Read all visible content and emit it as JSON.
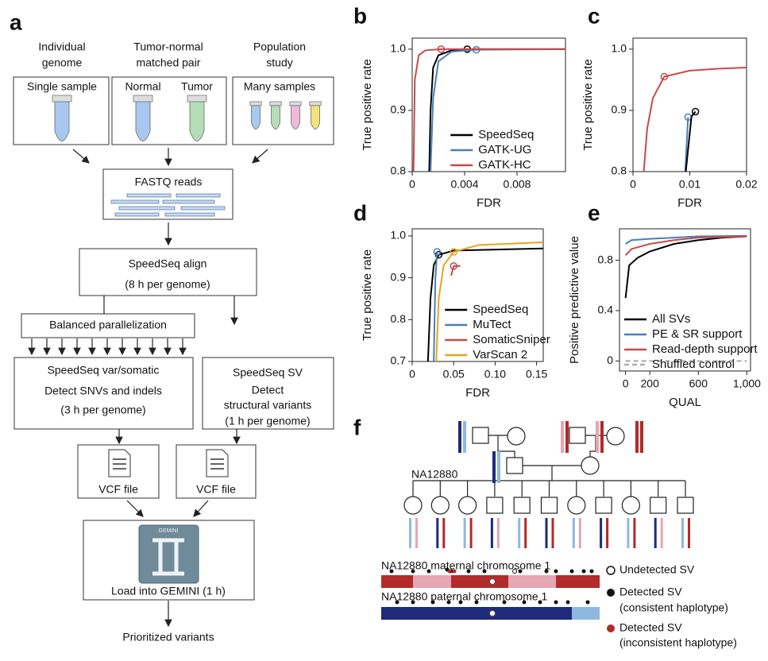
{
  "panels": [
    "a",
    "b",
    "c",
    "d",
    "e",
    "f"
  ],
  "flow": {
    "column_titles": [
      [
        "Individual",
        "genome"
      ],
      [
        "Tumor-normal",
        "matched pair"
      ],
      [
        "Population",
        "study"
      ]
    ],
    "samples": [
      "Single sample",
      "Normal",
      "Tumor",
      "Many samples"
    ],
    "fastq": "FASTQ reads",
    "align": [
      "SpeedSeq align",
      "(8 h per genome)"
    ],
    "parallel": "Balanced parallelization",
    "var": [
      "SpeedSeq var/somatic",
      "Detect SNVs and indels",
      "(3 h per genome)"
    ],
    "sv": [
      "SpeedSeq SV",
      "Detect",
      "structural variants",
      "(1 h per genome)"
    ],
    "vcf": [
      "VCF file",
      "VCF file"
    ],
    "logo": "GEMINI",
    "load": "Load into GEMINI (1 h)",
    "output": "Prioritized variants"
  },
  "chart_data": [
    {
      "type": "line",
      "xlabel": "FDR",
      "ylabel": "True positive rate",
      "legend": "lower right",
      "xlim": [
        0,
        0.0117
      ],
      "ylim": [
        0.8,
        1.018
      ],
      "xticks": [
        0,
        0.004,
        0.008
      ],
      "yticks": [
        0.8,
        0.9,
        {
          "value": 1,
          "label": "1.0"
        }
      ],
      "series": [
        {
          "name": "SpeedSeq",
          "color": "#000000",
          "x": [
            0.0013,
            0.0014,
            0.0016,
            0.002,
            0.003,
            0.0042,
            0.0117
          ],
          "values": [
            0.8,
            0.9,
            0.97,
            0.99,
            0.998,
            1.0,
            1.0
          ],
          "marker": {
            "x": 0.0042,
            "y": 1.0
          }
        },
        {
          "name": "GATK-UG",
          "color": "#4a7ebb",
          "x": [
            0.0014,
            0.0016,
            0.002,
            0.003,
            0.0049,
            0.0117
          ],
          "values": [
            0.8,
            0.92,
            0.98,
            0.996,
            0.999,
            1.0
          ],
          "marker": {
            "x": 0.0049,
            "y": 0.999
          }
        },
        {
          "name": "GATK-HC",
          "color": "#c84a4a",
          "x": [
            0.0001,
            0.0002,
            0.0005,
            0.001,
            0.0022,
            0.0117
          ],
          "values": [
            0.8,
            0.95,
            0.99,
            0.998,
            1.0,
            1.0
          ],
          "marker": {
            "x": 0.0022,
            "y": 1.0
          }
        }
      ]
    },
    {
      "type": "line",
      "xlabel": "FDR",
      "ylabel": "True positive rate",
      "xlim": [
        0,
        0.02
      ],
      "ylim": [
        0.8,
        1.018
      ],
      "xticks": [
        0,
        0.01,
        0.02
      ],
      "yticks": [
        0.8,
        0.9,
        {
          "value": 1,
          "label": "1.0"
        }
      ],
      "series": [
        {
          "color": "#c84a4a",
          "x": [
            0.0019,
            0.0025,
            0.0035,
            0.0055,
            0.01,
            0.015,
            0.02
          ],
          "values": [
            0.8,
            0.87,
            0.92,
            0.955,
            0.965,
            0.968,
            0.97
          ],
          "marker": {
            "x": 0.0055,
            "y": 0.955
          }
        },
        {
          "color": "#4a7ebb",
          "x": [
            0.0092,
            0.0097
          ],
          "values": [
            0.8,
            0.889
          ],
          "marker": {
            "x": 0.0097,
            "y": 0.889
          }
        },
        {
          "color": "#000000",
          "x": [
            0.0093,
            0.0103,
            0.011
          ],
          "values": [
            0.8,
            0.89,
            0.898
          ],
          "marker": {
            "x": 0.011,
            "y": 0.898
          }
        }
      ]
    },
    {
      "type": "line",
      "xlabel": "FDR",
      "ylabel": "True positive rate",
      "legend": "lower right",
      "xlim": [
        0,
        0.158
      ],
      "ylim": [
        0.7,
        1.017
      ],
      "xticks": [
        0,
        0.05,
        {
          "value": 0.1,
          "label": "0.10"
        },
        0.15
      ],
      "yticks": [
        0.7,
        0.8,
        0.9,
        {
          "value": 1,
          "label": "1.0"
        }
      ],
      "series": [
        {
          "name": "SpeedSeq",
          "color": "#000000",
          "x": [
            0.019,
            0.022,
            0.026,
            0.032,
            0.05,
            0.158
          ],
          "values": [
            0.7,
            0.85,
            0.93,
            0.955,
            0.965,
            0.97
          ],
          "marker": {
            "x": 0.032,
            "y": 0.955
          }
        },
        {
          "name": "MuTect",
          "color": "#4a7ebb",
          "x": [
            0.026,
            0.028,
            0.03
          ],
          "values": [
            0.7,
            0.9,
            0.962
          ],
          "marker": {
            "x": 0.03,
            "y": 0.962
          }
        },
        {
          "name": "SomaticSniper",
          "color": "#c84a4a",
          "x": [
            0.047,
            0.05,
            0.058
          ],
          "values": [
            0.905,
            0.928,
            0.928
          ],
          "marker": {
            "x": 0.05,
            "y": 0.928
          }
        },
        {
          "name": "VarScan 2",
          "color": "#e6a520",
          "x": [
            0.029,
            0.032,
            0.038,
            0.05,
            0.08,
            0.158
          ],
          "values": [
            0.7,
            0.85,
            0.93,
            0.962,
            0.978,
            0.985
          ],
          "marker": {
            "x": 0.05,
            "y": 0.962
          }
        }
      ]
    },
    {
      "type": "line",
      "xlabel": "QUAL",
      "ylabel": "Positive predictive value",
      "legend": "lower left",
      "xlim": [
        -50,
        1030
      ],
      "ylim": [
        -0.08,
        1.05
      ],
      "xticks": [
        0,
        200,
        600,
        {
          "value": 1000,
          "label": "1,000"
        }
      ],
      "yticks": [
        0,
        0.4,
        0.8
      ],
      "series": [
        {
          "name": "All SVs",
          "color": "#000000",
          "x": [
            0,
            30,
            100,
            200,
            400,
            600,
            800,
            1000
          ],
          "values": [
            0.5,
            0.76,
            0.82,
            0.87,
            0.93,
            0.96,
            0.98,
            0.99
          ]
        },
        {
          "name": "PE & SR support",
          "color": "#4a7ebb",
          "x": [
            0,
            50,
            200,
            400,
            600,
            1000
          ],
          "values": [
            0.93,
            0.96,
            0.97,
            0.98,
            0.99,
            0.995
          ]
        },
        {
          "name": "Read-depth support",
          "color": "#c84a4a",
          "x": [
            0,
            50,
            200,
            400,
            600,
            1000
          ],
          "values": [
            0.84,
            0.89,
            0.93,
            0.96,
            0.98,
            0.99
          ]
        },
        {
          "name": "Shuffled control",
          "color": "#aaaaaa",
          "dashed": true,
          "x": [
            0,
            1000
          ],
          "values": [
            0,
            0
          ]
        }
      ]
    }
  ],
  "pedigree": {
    "proband": "NA12880",
    "maternal": "NA12880 maternal chromosome 1",
    "paternal": "NA12880 paternal chromosome 1",
    "legend": [
      [
        "Undetected SV"
      ],
      [
        "Detected SV",
        "(consistent haplotype)"
      ],
      [
        "Detected SV",
        "(inconsistent haplotype)"
      ]
    ]
  }
}
